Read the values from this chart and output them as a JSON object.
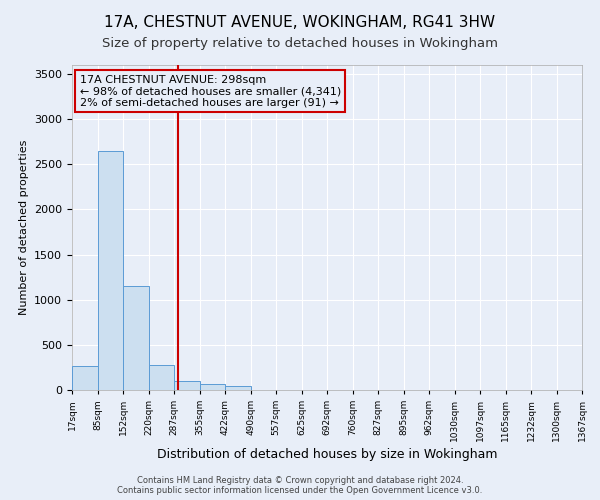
{
  "title": "17A, CHESTNUT AVENUE, WOKINGHAM, RG41 3HW",
  "subtitle": "Size of property relative to detached houses in Wokingham",
  "xlabel": "Distribution of detached houses by size in Wokingham",
  "ylabel": "Number of detached properties",
  "footer_line1": "Contains HM Land Registry data © Crown copyright and database right 2024.",
  "footer_line2": "Contains public sector information licensed under the Open Government Licence v3.0.",
  "bin_edges": [
    17,
    85,
    152,
    220,
    287,
    355,
    422,
    490,
    557,
    625,
    692,
    760,
    827,
    895,
    962,
    1030,
    1097,
    1165,
    1232,
    1300,
    1367
  ],
  "bin_labels": [
    "17sqm",
    "85sqm",
    "152sqm",
    "220sqm",
    "287sqm",
    "355sqm",
    "422sqm",
    "490sqm",
    "557sqm",
    "625sqm",
    "692sqm",
    "760sqm",
    "827sqm",
    "895sqm",
    "962sqm",
    "1030sqm",
    "1097sqm",
    "1165sqm",
    "1232sqm",
    "1300sqm",
    "1367sqm"
  ],
  "bar_heights": [
    270,
    2650,
    1150,
    280,
    95,
    65,
    40,
    5,
    0,
    0,
    0,
    0,
    0,
    0,
    0,
    0,
    0,
    0,
    0,
    0
  ],
  "bar_color": "#ccdff0",
  "bar_edge_color": "#5b9bd5",
  "property_size": 298,
  "red_line_color": "#cc0000",
  "annotation_text": "17A CHESTNUT AVENUE: 298sqm\n← 98% of detached houses are smaller (4,341)\n2% of semi-detached houses are larger (91) →",
  "ylim": [
    0,
    3600
  ],
  "yticks": [
    0,
    500,
    1000,
    1500,
    2000,
    2500,
    3000,
    3500
  ],
  "background_color": "#e8eef8",
  "grid_color": "#ffffff",
  "title_fontsize": 11,
  "subtitle_fontsize": 9.5
}
